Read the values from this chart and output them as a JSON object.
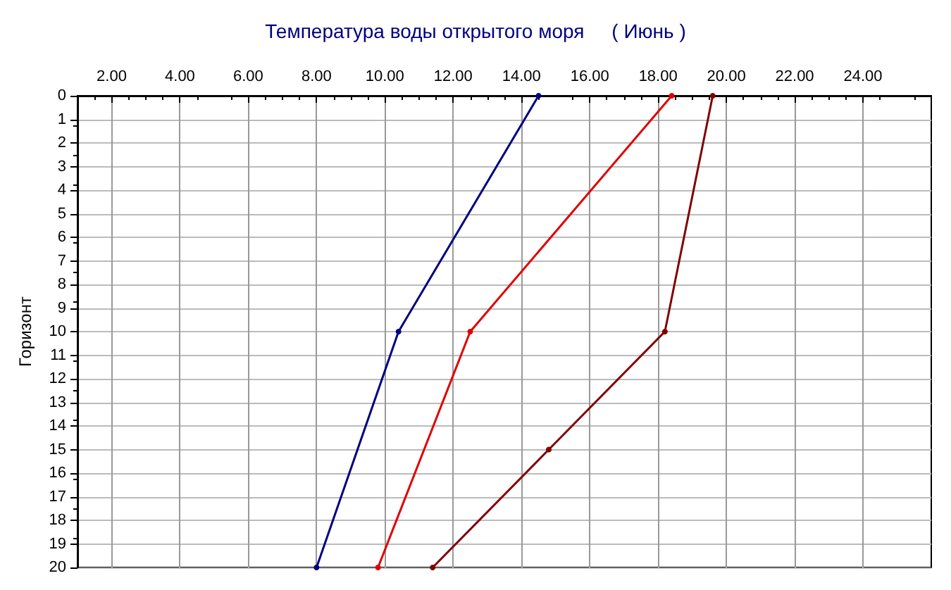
{
  "chart_data": {
    "type": "line",
    "title": "Температура воды открытого моря     ( Июнь )",
    "ylabel": "Горизонт",
    "xlim": [
      1,
      26
    ],
    "xticks": [
      {
        "value": 2,
        "label": "2.00"
      },
      {
        "value": 4,
        "label": "4.00"
      },
      {
        "value": 6,
        "label": "6.00"
      },
      {
        "value": 8,
        "label": "8.00"
      },
      {
        "value": 10,
        "label": "10.00"
      },
      {
        "value": 12,
        "label": "12.00"
      },
      {
        "value": 14,
        "label": "14.00"
      },
      {
        "value": 16,
        "label": "16.00"
      },
      {
        "value": 18,
        "label": "18.00"
      },
      {
        "value": 20,
        "label": "20.00"
      },
      {
        "value": 22,
        "label": "22.00"
      },
      {
        "value": 24,
        "label": "24.00"
      }
    ],
    "ylim": [
      20,
      0
    ],
    "yticks": [
      0,
      1,
      2,
      3,
      4,
      5,
      6,
      7,
      8,
      9,
      10,
      11,
      12,
      13,
      14,
      15,
      16,
      17,
      18,
      19,
      20
    ],
    "grid": true,
    "marker": "circle",
    "line_style": "solid",
    "series": [
      {
        "color": "#000080",
        "x": [
          14.5,
          10.4,
          8.0
        ],
        "values": [
          0,
          10,
          20
        ]
      },
      {
        "color": "#e00000",
        "x": [
          18.4,
          12.5,
          9.8
        ],
        "values": [
          0,
          10,
          20
        ]
      },
      {
        "color": "#800000",
        "x": [
          19.6,
          18.2,
          14.8,
          11.4
        ],
        "values": [
          0,
          10,
          15,
          20
        ]
      }
    ]
  }
}
